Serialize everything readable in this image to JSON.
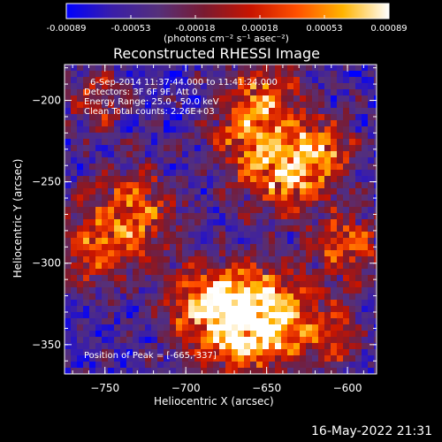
{
  "colorbar": {
    "ticks": [
      "-0.00089",
      "-0.00053",
      "-0.00018",
      "0.00018",
      "0.00053",
      "0.00089"
    ],
    "units": "(photons cm⁻² s⁻¹ asec⁻²)"
  },
  "chart_data": {
    "type": "heatmap",
    "title": "Reconstructed RHESSI Image",
    "xlabel": "Heliocentric X (arcsec)",
    "ylabel": "Heliocentric Y (arcsec)",
    "xlim": [
      -775,
      -582
    ],
    "ylim": [
      -368,
      -178
    ],
    "xticks": [
      -750,
      -700,
      -650,
      -600
    ],
    "yticks": [
      -200,
      -250,
      -300,
      -350
    ],
    "zlim": [
      -0.00089,
      0.00089
    ],
    "colormap": [
      "#0000ff",
      "#3a1ea8",
      "#55307a",
      "#7a1a30",
      "#c81400",
      "#ff5000",
      "#ffb400",
      "#ffffff"
    ],
    "bright_regions": [
      {
        "x": -665,
        "y": -337,
        "weight": 1.0,
        "radius": 22
      },
      {
        "x": -690,
        "y": -325,
        "weight": 0.55,
        "radius": 18
      },
      {
        "x": -645,
        "y": -330,
        "weight": 0.55,
        "radius": 18
      },
      {
        "x": -735,
        "y": -270,
        "weight": 0.75,
        "radius": 20
      },
      {
        "x": -760,
        "y": -295,
        "weight": 0.5,
        "radius": 15
      },
      {
        "x": -640,
        "y": -245,
        "weight": 0.8,
        "radius": 18
      },
      {
        "x": -615,
        "y": -230,
        "weight": 0.65,
        "radius": 15
      },
      {
        "x": -665,
        "y": -220,
        "weight": 0.6,
        "radius": 15
      },
      {
        "x": -600,
        "y": -290,
        "weight": 0.65,
        "radius": 16
      },
      {
        "x": -610,
        "y": -345,
        "weight": 0.5,
        "radius": 14
      },
      {
        "x": -755,
        "y": -200,
        "weight": 0.5,
        "radius": 13
      },
      {
        "x": -650,
        "y": -195,
        "weight": 0.6,
        "radius": 16
      }
    ],
    "annotations": [
      "6-Sep-2014 11:37:44.000 to 11:41:24.000",
      "Detectors: 3F 6F 9F, Att 0",
      "Energy Range: 25.0 - 50.0 keV",
      "Clean     Total counts: 2.26E+03"
    ],
    "peak_label": "Position of Peak = [-665,-337]"
  },
  "footer": {
    "timestamp": "16-May-2022 21:31"
  }
}
